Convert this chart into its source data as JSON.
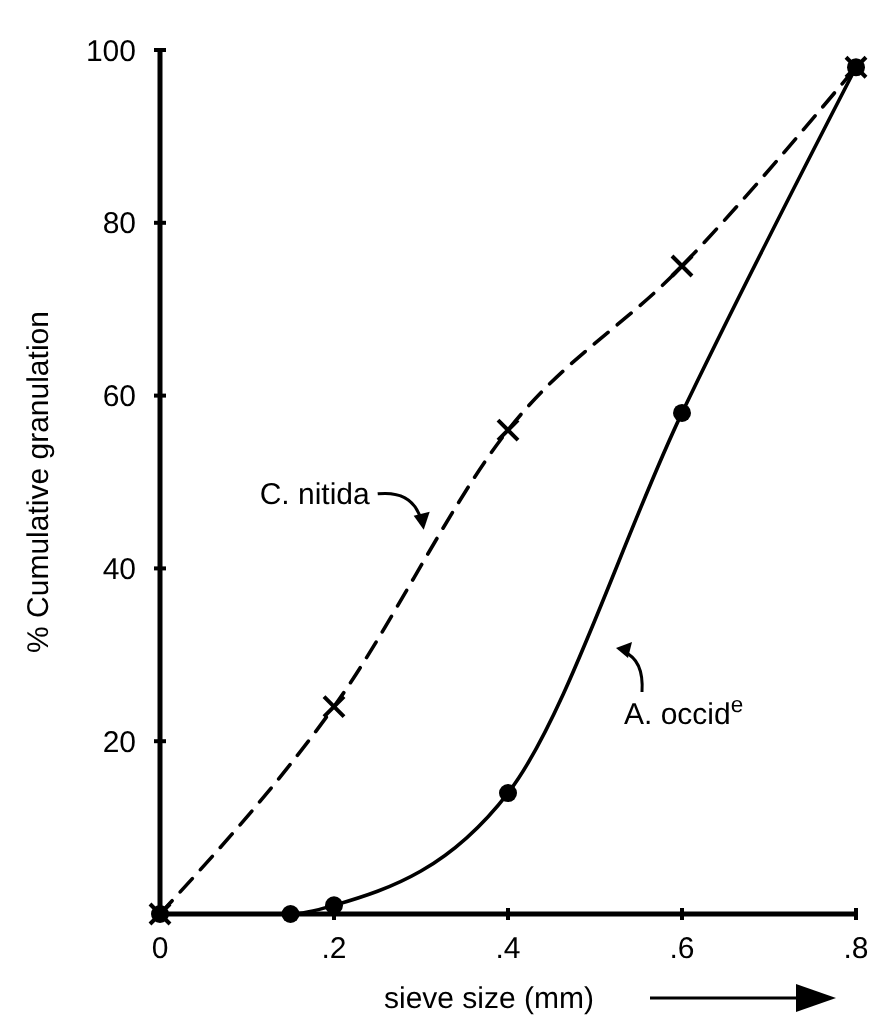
{
  "chart_data": {
    "type": "line",
    "xlabel": "sieve size (mm)",
    "ylabel": "% Cumulative granulation",
    "xlim": [
      0,
      0.8
    ],
    "ylim": [
      0,
      100
    ],
    "xticks": [
      0,
      {
        "value": 0.2,
        "label": ".2"
      },
      {
        "value": 0.4,
        "label": ".4"
      },
      {
        "value": 0.6,
        "label": ".6"
      },
      {
        "value": 0.8,
        "label": ".8"
      }
    ],
    "yticks": [
      20,
      40,
      60,
      80,
      100
    ],
    "grid": false,
    "series": [
      {
        "color": "#000000",
        "line_style": "dashed",
        "marker": "cross",
        "x": [
          0,
          0.2,
          0.4,
          0.6,
          0.8
        ],
        "values": [
          0,
          24,
          56,
          75,
          98
        ]
      },
      {
        "color": "#000000",
        "line_style": "solid",
        "marker": "circle",
        "x": [
          0,
          0.15,
          0.2,
          0.4,
          0.6,
          0.8
        ],
        "values": [
          0,
          0,
          1,
          14,
          58,
          98
        ]
      }
    ],
    "annotations": [
      {
        "text": "C. nitida",
        "x": 0.31,
        "y": 44
      },
      "A. occid$^{e}$"
    ]
  }
}
